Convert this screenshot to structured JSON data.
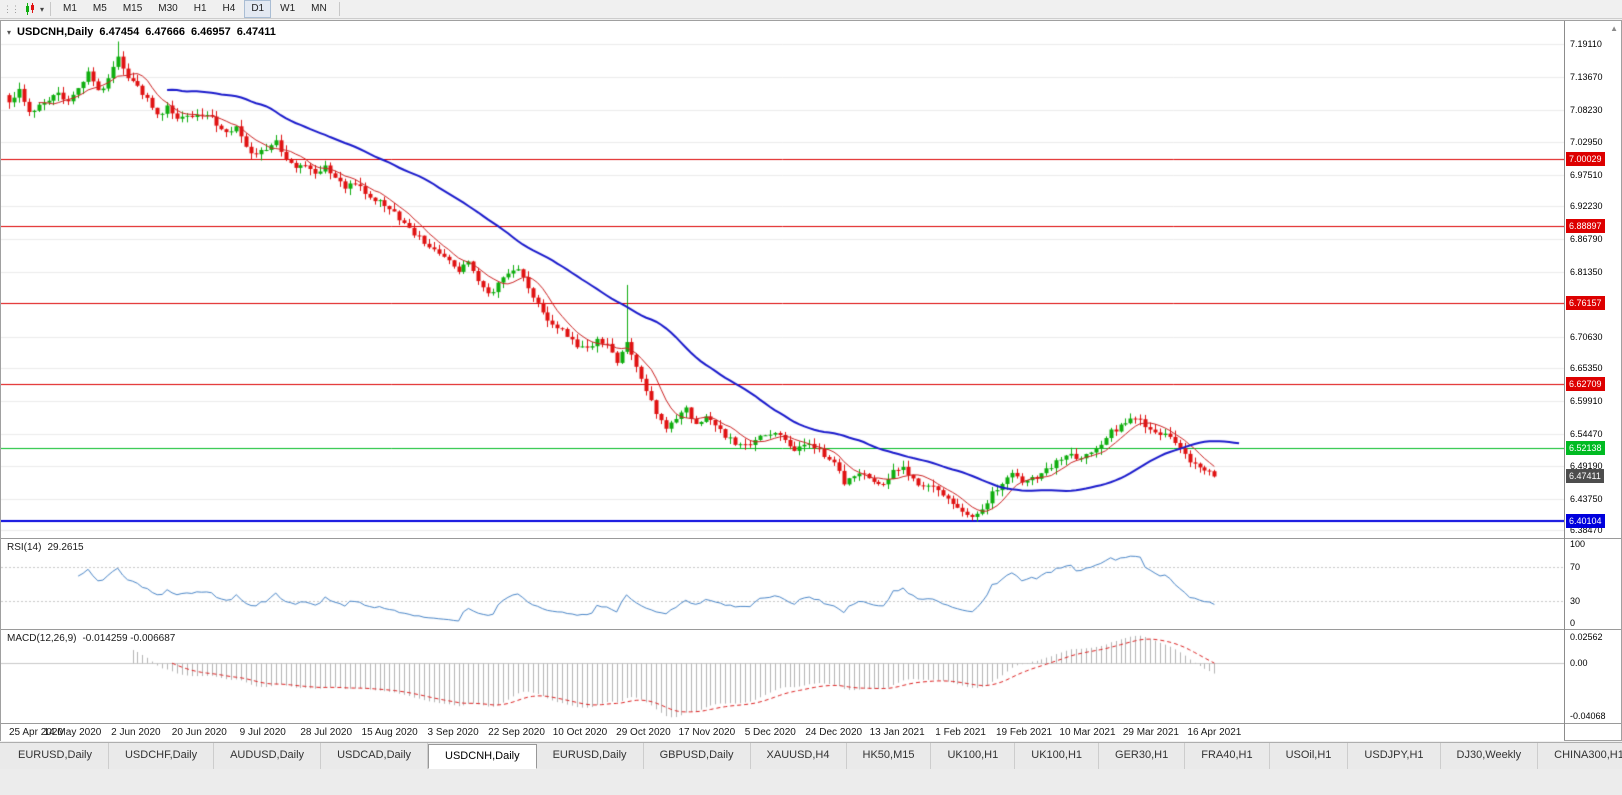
{
  "toolbar": {
    "timeframes": [
      "M1",
      "M5",
      "M15",
      "M30",
      "H1",
      "H4",
      "D1",
      "W1",
      "MN"
    ],
    "active_timeframe": "D1"
  },
  "chart_data": {
    "type": "candlestick",
    "symbol": "USDCNH",
    "timeframe": "Daily",
    "title": "USDCNH,Daily",
    "ohlc": {
      "open": "6.47454",
      "high": "6.47666",
      "low": "6.46957",
      "close": "6.47411"
    },
    "price_range": {
      "min": 6.372,
      "max": 7.23
    },
    "y_axis_ticks": [
      "7.19110",
      "7.13670",
      "7.08230",
      "7.02950",
      "6.97510",
      "6.92230",
      "6.86790",
      "6.81350",
      "6.70630",
      "6.65350",
      "6.59910",
      "6.54470",
      "6.49190",
      "6.43750",
      "6.38470"
    ],
    "horizontal_lines": [
      {
        "price": 7.00029,
        "label": "7.00029",
        "color": "#dd0000",
        "width": 1
      },
      {
        "price": 6.88897,
        "label": "6.88897",
        "color": "#dd0000",
        "width": 1
      },
      {
        "price": 6.76157,
        "label": "6.76157",
        "color": "#dd0000",
        "width": 1
      },
      {
        "price": 6.62709,
        "label": "6.62709",
        "color": "#dd0000",
        "width": 1
      },
      {
        "price": 6.52138,
        "label": "6.52138",
        "color": "#00bb22",
        "width": 1
      },
      {
        "price": 6.40104,
        "label": "6.40104",
        "color": "#0000dd",
        "width": 2
      }
    ],
    "current_price": {
      "label": "6.47411",
      "price": 6.47411,
      "bg": "#4d4d4d"
    },
    "x_axis_labels": [
      "25 Apr 2020",
      "14 May 2020",
      "2 Jun 2020",
      "20 Jun 2020",
      "9 Jul 2020",
      "28 Jul 2020",
      "15 Aug 2020",
      "3 Sep 2020",
      "22 Sep 2020",
      "10 Oct 2020",
      "29 Oct 2020",
      "17 Nov 2020",
      "5 Dec 2020",
      "24 Dec 2020",
      "13 Jan 2021",
      "1 Feb 2021",
      "19 Feb 2021",
      "10 Mar 2021",
      "29 Mar 2021",
      "16 Apr 2021"
    ],
    "candles": {
      "count": 245,
      "up_color": "#0fae0f",
      "down_color": "#e01212",
      "close_anchors": [
        [
          0,
          7.095
        ],
        [
          2,
          7.118
        ],
        [
          4,
          7.082
        ],
        [
          7,
          7.092
        ],
        [
          10,
          7.112
        ],
        [
          12,
          7.096
        ],
        [
          14,
          7.12
        ],
        [
          16,
          7.142
        ],
        [
          18,
          7.112
        ],
        [
          20,
          7.132
        ],
        [
          22,
          7.168
        ],
        [
          24,
          7.134
        ],
        [
          26,
          7.122
        ],
        [
          28,
          7.1
        ],
        [
          30,
          7.072
        ],
        [
          32,
          7.088
        ],
        [
          34,
          7.072
        ],
        [
          37,
          7.068
        ],
        [
          40,
          7.077
        ],
        [
          42,
          7.06
        ],
        [
          44,
          7.042
        ],
        [
          46,
          7.052
        ],
        [
          48,
          7.022
        ],
        [
          50,
          7.006
        ],
        [
          52,
          7.02
        ],
        [
          54,
          7.028
        ],
        [
          56,
          7.0
        ],
        [
          58,
          6.986
        ],
        [
          60,
          6.992
        ],
        [
          62,
          6.976
        ],
        [
          64,
          6.99
        ],
        [
          66,
          6.97
        ],
        [
          68,
          6.952
        ],
        [
          70,
          6.962
        ],
        [
          72,
          6.946
        ],
        [
          75,
          6.93
        ],
        [
          77,
          6.92
        ],
        [
          79,
          6.9
        ],
        [
          81,
          6.886
        ],
        [
          83,
          6.87
        ],
        [
          85,
          6.856
        ],
        [
          87,
          6.845
        ],
        [
          89,
          6.83
        ],
        [
          91,
          6.816
        ],
        [
          93,
          6.832
        ],
        [
          95,
          6.8
        ],
        [
          97,
          6.776
        ],
        [
          99,
          6.792
        ],
        [
          101,
          6.812
        ],
        [
          103,
          6.82
        ],
        [
          105,
          6.784
        ],
        [
          107,
          6.76
        ],
        [
          109,
          6.734
        ],
        [
          111,
          6.72
        ],
        [
          113,
          6.71
        ],
        [
          115,
          6.692
        ],
        [
          117,
          6.684
        ],
        [
          119,
          6.702
        ],
        [
          121,
          6.692
        ],
        [
          123,
          6.664
        ],
        [
          125,
          6.698
        ],
        [
          127,
          6.66
        ],
        [
          129,
          6.62
        ],
        [
          131,
          6.582
        ],
        [
          133,
          6.556
        ],
        [
          135,
          6.57
        ],
        [
          137,
          6.586
        ],
        [
          139,
          6.562
        ],
        [
          141,
          6.576
        ],
        [
          143,
          6.556
        ],
        [
          145,
          6.542
        ],
        [
          147,
          6.53
        ],
        [
          149,
          6.526
        ],
        [
          151,
          6.532
        ],
        [
          153,
          6.544
        ],
        [
          155,
          6.548
        ],
        [
          157,
          6.534
        ],
        [
          159,
          6.52
        ],
        [
          161,
          6.53
        ],
        [
          163,
          6.522
        ],
        [
          165,
          6.51
        ],
        [
          167,
          6.498
        ],
        [
          169,
          6.462
        ],
        [
          171,
          6.472
        ],
        [
          173,
          6.478
        ],
        [
          175,
          6.468
        ],
        [
          177,
          6.458
        ],
        [
          179,
          6.482
        ],
        [
          181,
          6.49
        ],
        [
          183,
          6.47
        ],
        [
          185,
          6.455
        ],
        [
          187,
          6.462
        ],
        [
          189,
          6.44
        ],
        [
          191,
          6.43
        ],
        [
          193,
          6.418
        ],
        [
          195,
          6.406
        ],
        [
          197,
          6.422
        ],
        [
          199,
          6.446
        ],
        [
          201,
          6.462
        ],
        [
          203,
          6.482
        ],
        [
          205,
          6.462
        ],
        [
          207,
          6.47
        ],
        [
          209,
          6.478
        ],
        [
          211,
          6.492
        ],
        [
          213,
          6.502
        ],
        [
          215,
          6.512
        ],
        [
          217,
          6.502
        ],
        [
          219,
          6.512
        ],
        [
          221,
          6.528
        ],
        [
          223,
          6.548
        ],
        [
          225,
          6.558
        ],
        [
          227,
          6.572
        ],
        [
          229,
          6.566
        ],
        [
          231,
          6.552
        ],
        [
          233,
          6.546
        ],
        [
          235,
          6.536
        ],
        [
          237,
          6.52
        ],
        [
          239,
          6.5
        ],
        [
          241,
          6.49
        ],
        [
          243,
          6.482
        ],
        [
          244,
          6.4741
        ]
      ],
      "spikes": [
        {
          "i": 22,
          "high": 7.196
        },
        {
          "i": 125,
          "high": 6.792
        },
        {
          "i": 195,
          "low": 6.401
        }
      ]
    },
    "moving_averages": [
      {
        "period": 7,
        "color": "#cc2222",
        "width": 1,
        "shift": 0
      },
      {
        "period": 28,
        "color": "#1a1acc",
        "width": 2,
        "shift": 5
      }
    ],
    "rsi": {
      "name": "RSI(14)",
      "value": "29.2615",
      "period": 14,
      "levels": [
        "100",
        "70",
        "30",
        "0"
      ],
      "line_color": "#4a86c8"
    },
    "macd": {
      "name": "MACD(12,26,9)",
      "values": "-0.014259 -0.006687",
      "fast": 12,
      "slow": 26,
      "signal_period": 9,
      "axis_labels": [
        "0.02562",
        "0.00",
        "-0.04068"
      ],
      "histogram_color": "#b4b4b4",
      "signal_color": "#dd2222"
    }
  },
  "tabs": {
    "active_index": 4,
    "items": [
      "EURUSD,Daily",
      "USDCHF,Daily",
      "AUDUSD,Daily",
      "USDCAD,Daily",
      "USDCNH,Daily",
      "EURUSD,Daily",
      "GBPUSD,Daily",
      "XAUUSD,H4",
      "HK50,M15",
      "UK100,H1",
      "UK100,H1",
      "GER30,H1",
      "FRA40,H1",
      "USOil,H1",
      "USDJPY,H1",
      "DJ30,Weekly",
      "CHINA300,H1"
    ]
  }
}
